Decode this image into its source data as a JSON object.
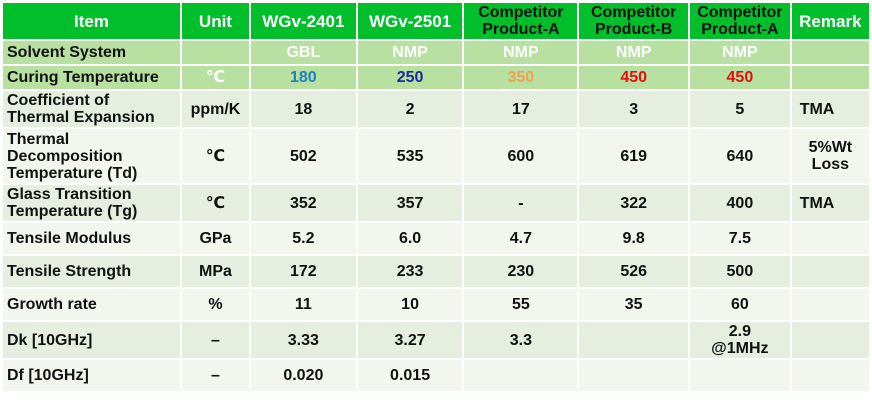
{
  "header": {
    "item": "Item",
    "unit": "Unit",
    "col1": "WGv-2401",
    "col2": "WGv-2501",
    "col3_line1": "Competitor",
    "col3_line2": "Product-A",
    "col4_line1": "Competitor",
    "col4_line2": "Product-B",
    "col5_line1": "Competitor",
    "col5_line2": "Product-A",
    "remark": "Remark"
  },
  "rows": {
    "solvent": {
      "name": "Solvent System",
      "unit": "",
      "v1": "GBL",
      "v2": "NMP",
      "v3": "NMP",
      "v4": "NMP",
      "v5": "NMP",
      "remark": ""
    },
    "curing": {
      "name": "Curing Temperature",
      "unit": "℃",
      "v1": "180",
      "v2": "250",
      "v3": "350",
      "v4": "450",
      "v5": "450",
      "remark": "",
      "colors": {
        "v1": "#1f7fbf",
        "v2": "#1a2a9a",
        "v3": "#f0a050",
        "v4": "#e01010",
        "v5": "#e01010"
      }
    },
    "cte": {
      "name_line1": "Coefficient of",
      "name_line2": "Thermal Expansion",
      "unit": "ppm/K",
      "v1": "18",
      "v2": "2",
      "v3": "17",
      "v4": "3",
      "v5": "5",
      "remark": "TMA"
    },
    "td": {
      "name_line1": "Thermal",
      "name_line2": "Decomposition",
      "name_line3": "Temperature (Td)",
      "unit": "℃",
      "v1": "502",
      "v2": "535",
      "v3": "600",
      "v4": "619",
      "v5": "640",
      "remark_line1": "5%Wt",
      "remark_line2": "Loss"
    },
    "tg": {
      "name_line1": "Glass Transition",
      "name_line2": "Temperature (Tg)",
      "unit": "℃",
      "v1": "352",
      "v2": "357",
      "v3": "-",
      "v4": "322",
      "v5": "400",
      "remark": "TMA"
    },
    "modulus": {
      "name": "Tensile Modulus",
      "unit": "GPa",
      "v1": "5.2",
      "v2": "6.0",
      "v3": "4.7",
      "v4": "9.8",
      "v5": "7.5",
      "remark": ""
    },
    "strength": {
      "name": "Tensile Strength",
      "unit": "MPa",
      "v1": "172",
      "v2": "233",
      "v3": "230",
      "v4": "526",
      "v5": "500",
      "remark": ""
    },
    "growth": {
      "name": "Growth rate",
      "unit": "%",
      "v1": "11",
      "v2": "10",
      "v3": "55",
      "v4": "35",
      "v5": "60",
      "remark": ""
    },
    "dk": {
      "name": "Dk [10GHz]",
      "unit": "–",
      "v1": "3.33",
      "v2": "3.27",
      "v3": "3.3",
      "v4": "",
      "v5_line1": "2.9",
      "v5_line2": "@1MHz",
      "remark": ""
    },
    "df": {
      "name": "Df [10GHz]",
      "unit": "–",
      "v1": "0.020",
      "v2": "0.015",
      "v3": "",
      "v4": "",
      "v5": "",
      "remark": ""
    }
  }
}
